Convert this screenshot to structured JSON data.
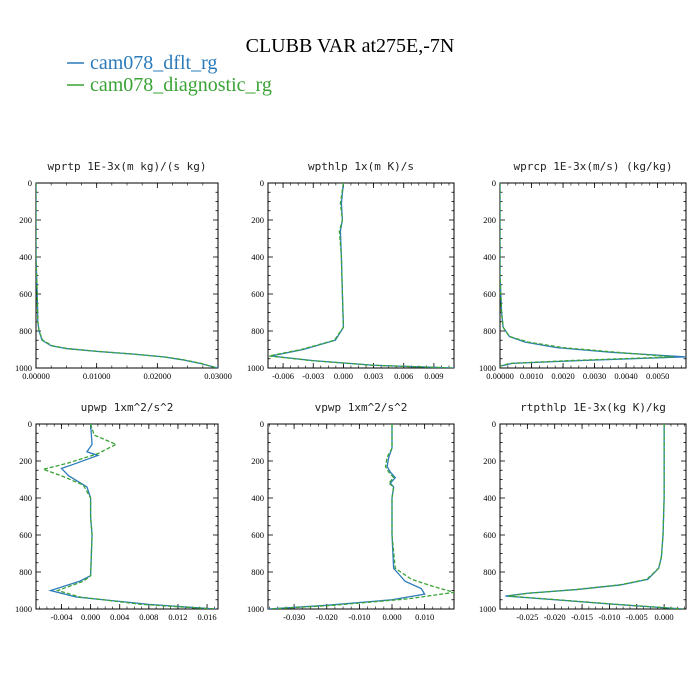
{
  "figure": {
    "title": "CLUBB VAR at275E,-7N",
    "legend": [
      {
        "label": "cam078_dflt_rg",
        "color": "#2b7bba"
      },
      {
        "label": "cam078_diagnostic_rg",
        "color": "#3aa335"
      }
    ]
  },
  "chart_data": [
    {
      "type": "line",
      "title": "wprtp  1E-3x(m kg)/(s kg)",
      "xlim": [
        0,
        0.03
      ],
      "ylim": [
        1000,
        0
      ],
      "xticks": [
        0,
        0.01,
        0.02,
        0.03
      ],
      "xtick_labels": [
        "0.00000",
        "0.01000",
        "0.02000",
        "0.03000"
      ],
      "yticks": [
        0,
        200,
        400,
        600,
        800,
        1000
      ],
      "series": [
        {
          "name": "cam078_dflt_rg",
          "color": "#2b7bba",
          "dash": "",
          "x": [
            0,
            0,
            0.0002,
            0.0003,
            0.0005,
            0.001,
            0.0025,
            0.005,
            0.01,
            0.016,
            0.021,
            0.024,
            0.027,
            0.03
          ],
          "y": [
            0,
            400,
            600,
            750,
            800,
            850,
            880,
            895,
            910,
            925,
            940,
            955,
            975,
            1000
          ]
        },
        {
          "name": "cam078_diagnostic_rg",
          "color": "#3aa335",
          "dash": "4,2",
          "x": [
            0,
            0,
            0.0002,
            0.0003,
            0.0005,
            0.0011,
            0.0027,
            0.0052,
            0.0102,
            0.0162,
            0.0212,
            0.0242,
            0.0272,
            0.0298
          ],
          "y": [
            0,
            400,
            600,
            750,
            800,
            850,
            880,
            895,
            910,
            925,
            940,
            955,
            975,
            1000
          ]
        }
      ]
    },
    {
      "type": "line",
      "title": "wpthlp  1x(m K)/s",
      "xlim": [
        -0.0075,
        0.011
      ],
      "ylim": [
        1000,
        0
      ],
      "xticks": [
        -0.006,
        -0.003,
        0,
        0.003,
        0.006,
        0.009
      ],
      "xtick_labels": [
        "-0.006",
        "-0.003",
        "0.000",
        "0.003",
        "0.006",
        "0.009"
      ],
      "yticks": [
        0,
        200,
        400,
        600,
        800,
        1000
      ],
      "series": [
        {
          "name": "cam078_dflt_rg",
          "color": "#2b7bba",
          "dash": "",
          "x": [
            0,
            -0.0002,
            -0.0001,
            -0.0003,
            -0.0002,
            -0.0001,
            0,
            -0.0008,
            -0.004,
            -0.0072,
            -0.003,
            0.003,
            0.011
          ],
          "y": [
            0,
            110,
            200,
            260,
            400,
            600,
            780,
            850,
            900,
            935,
            960,
            985,
            1000
          ]
        },
        {
          "name": "cam078_diagnostic_rg",
          "color": "#3aa335",
          "dash": "4,2",
          "x": [
            0,
            -0.0003,
            -0.0001,
            -0.0004,
            -0.0002,
            -0.0001,
            0,
            -0.0009,
            -0.0042,
            -0.0074,
            -0.0032,
            0.0028,
            0.0109
          ],
          "y": [
            0,
            110,
            200,
            260,
            400,
            600,
            780,
            850,
            900,
            935,
            960,
            985,
            1000
          ]
        }
      ]
    },
    {
      "type": "line",
      "title": "wprcp  1E-3x(m/s) (kg/kg)",
      "xlim": [
        0,
        0.0059
      ],
      "ylim": [
        1000,
        0
      ],
      "xticks": [
        0,
        0.001,
        0.002,
        0.003,
        0.004,
        0.005
      ],
      "xtick_labels": [
        "0.00000",
        "0.0010",
        "0.0020",
        "0.0030",
        "0.0040",
        "0.0050"
      ],
      "yticks": [
        0,
        200,
        400,
        600,
        800,
        1000
      ],
      "series": [
        {
          "name": "cam078_dflt_rg",
          "color": "#2b7bba",
          "dash": "",
          "x": [
            0,
            0,
            5e-05,
            0.0001,
            0.0003,
            0.0008,
            0.0018,
            0.0035,
            0.0059,
            0.0025,
            0.0004,
            0
          ],
          "y": [
            0,
            500,
            700,
            780,
            830,
            860,
            890,
            915,
            940,
            960,
            975,
            990
          ]
        },
        {
          "name": "cam078_diagnostic_rg",
          "color": "#3aa335",
          "dash": "4,2",
          "x": [
            0,
            0,
            5e-05,
            0.0001,
            0.0003,
            0.0009,
            0.002,
            0.0037,
            0.0055,
            0.0022,
            0.0003,
            0
          ],
          "y": [
            0,
            500,
            700,
            780,
            830,
            860,
            890,
            915,
            940,
            960,
            975,
            990
          ]
        }
      ]
    },
    {
      "type": "line",
      "title": "upwp  1xm^2/s^2",
      "xlim": [
        -0.0075,
        0.0175
      ],
      "ylim": [
        1000,
        0
      ],
      "xticks": [
        -0.004,
        0,
        0.004,
        0.008,
        0.012,
        0.016
      ],
      "xtick_labels": [
        "-0.004",
        "0.000",
        "0.004",
        "0.008",
        "0.012",
        "0.016"
      ],
      "yticks": [
        0,
        200,
        400,
        600,
        800,
        1000
      ],
      "series": [
        {
          "name": "cam078_dflt_rg",
          "color": "#2b7bba",
          "dash": "",
          "x": [
            0,
            0.0002,
            -0.0005,
            0.001,
            -0.0025,
            -0.004,
            -0.003,
            -0.0005,
            0,
            0,
            0.0002,
            0,
            -0.0015,
            -0.0055,
            -0.002,
            0.008,
            0.0172
          ],
          "y": [
            0,
            110,
            150,
            170,
            220,
            240,
            280,
            340,
            400,
            500,
            600,
            820,
            850,
            900,
            935,
            975,
            1000
          ]
        },
        {
          "name": "cam078_diagnostic_rg",
          "color": "#3aa335",
          "dash": "4,2",
          "x": [
            0,
            0.0005,
            0.0035,
            0.001,
            -0.003,
            -0.0065,
            -0.004,
            -0.001,
            0,
            0,
            0.0002,
            0,
            -0.001,
            -0.0045,
            -0.0015,
            0.007,
            0.017
          ],
          "y": [
            0,
            60,
            110,
            160,
            210,
            245,
            280,
            330,
            400,
            500,
            600,
            820,
            850,
            900,
            935,
            975,
            1000
          ]
        }
      ]
    },
    {
      "type": "line",
      "title": "vpwp  1xm^2/s^2",
      "xlim": [
        -0.038,
        0.019
      ],
      "ylim": [
        1000,
        0
      ],
      "xticks": [
        -0.03,
        -0.02,
        -0.01,
        0,
        0.01
      ],
      "xtick_labels": [
        "-0.030",
        "-0.020",
        "-0.010",
        "0.000",
        "0.010"
      ],
      "yticks": [
        0,
        200,
        400,
        600,
        800,
        1000
      ],
      "series": [
        {
          "name": "cam078_dflt_rg",
          "color": "#2b7bba",
          "dash": "",
          "x": [
            0,
            0,
            -0.001,
            -0.0015,
            -0.0005,
            0.001,
            -0.0005,
            0.0005,
            0,
            0,
            0.0005,
            0.004,
            0.009,
            0.01,
            0,
            -0.02,
            -0.038
          ],
          "y": [
            0,
            130,
            180,
            230,
            260,
            290,
            320,
            340,
            400,
            600,
            780,
            850,
            890,
            920,
            950,
            980,
            1000
          ]
        },
        {
          "name": "cam078_diagnostic_rg",
          "color": "#3aa335",
          "dash": "4,2",
          "x": [
            0,
            0,
            -0.0015,
            -0.002,
            -0.001,
            0.0005,
            -0.001,
            0.0005,
            0,
            0,
            0.001,
            0.006,
            0.013,
            0.019,
            0.005,
            -0.018,
            -0.0375
          ],
          "y": [
            0,
            130,
            180,
            230,
            260,
            290,
            320,
            340,
            400,
            600,
            780,
            840,
            880,
            910,
            945,
            980,
            1000
          ]
        }
      ]
    },
    {
      "type": "line",
      "title": "rtpthlp  1E-3x(kg K)/kg",
      "xlim": [
        -0.03,
        0.004
      ],
      "ylim": [
        1000,
        0
      ],
      "xticks": [
        -0.025,
        -0.02,
        -0.015,
        -0.01,
        -0.005,
        0
      ],
      "xtick_labels": [
        "-0.025",
        "-0.020",
        "-0.015",
        "-0.010",
        "-0.005",
        "0.000"
      ],
      "yticks": [
        0,
        200,
        400,
        600,
        800,
        1000
      ],
      "series": [
        {
          "name": "cam078_dflt_rg",
          "color": "#2b7bba",
          "dash": "",
          "x": [
            0,
            0,
            -0.0002,
            -0.0005,
            -0.001,
            -0.003,
            -0.008,
            -0.016,
            -0.025,
            -0.029,
            -0.02,
            -0.009,
            0.0035
          ],
          "y": [
            0,
            400,
            600,
            720,
            780,
            840,
            870,
            895,
            915,
            930,
            950,
            975,
            1000
          ]
        },
        {
          "name": "cam078_diagnostic_rg",
          "color": "#3aa335",
          "dash": "4,2",
          "x": [
            0,
            0,
            -0.0002,
            -0.0005,
            -0.001,
            -0.0032,
            -0.0082,
            -0.0162,
            -0.0248,
            -0.0285,
            -0.0195,
            -0.0085,
            0.0035
          ],
          "y": [
            0,
            400,
            600,
            720,
            780,
            840,
            870,
            895,
            915,
            930,
            950,
            975,
            1000
          ]
        }
      ]
    }
  ]
}
